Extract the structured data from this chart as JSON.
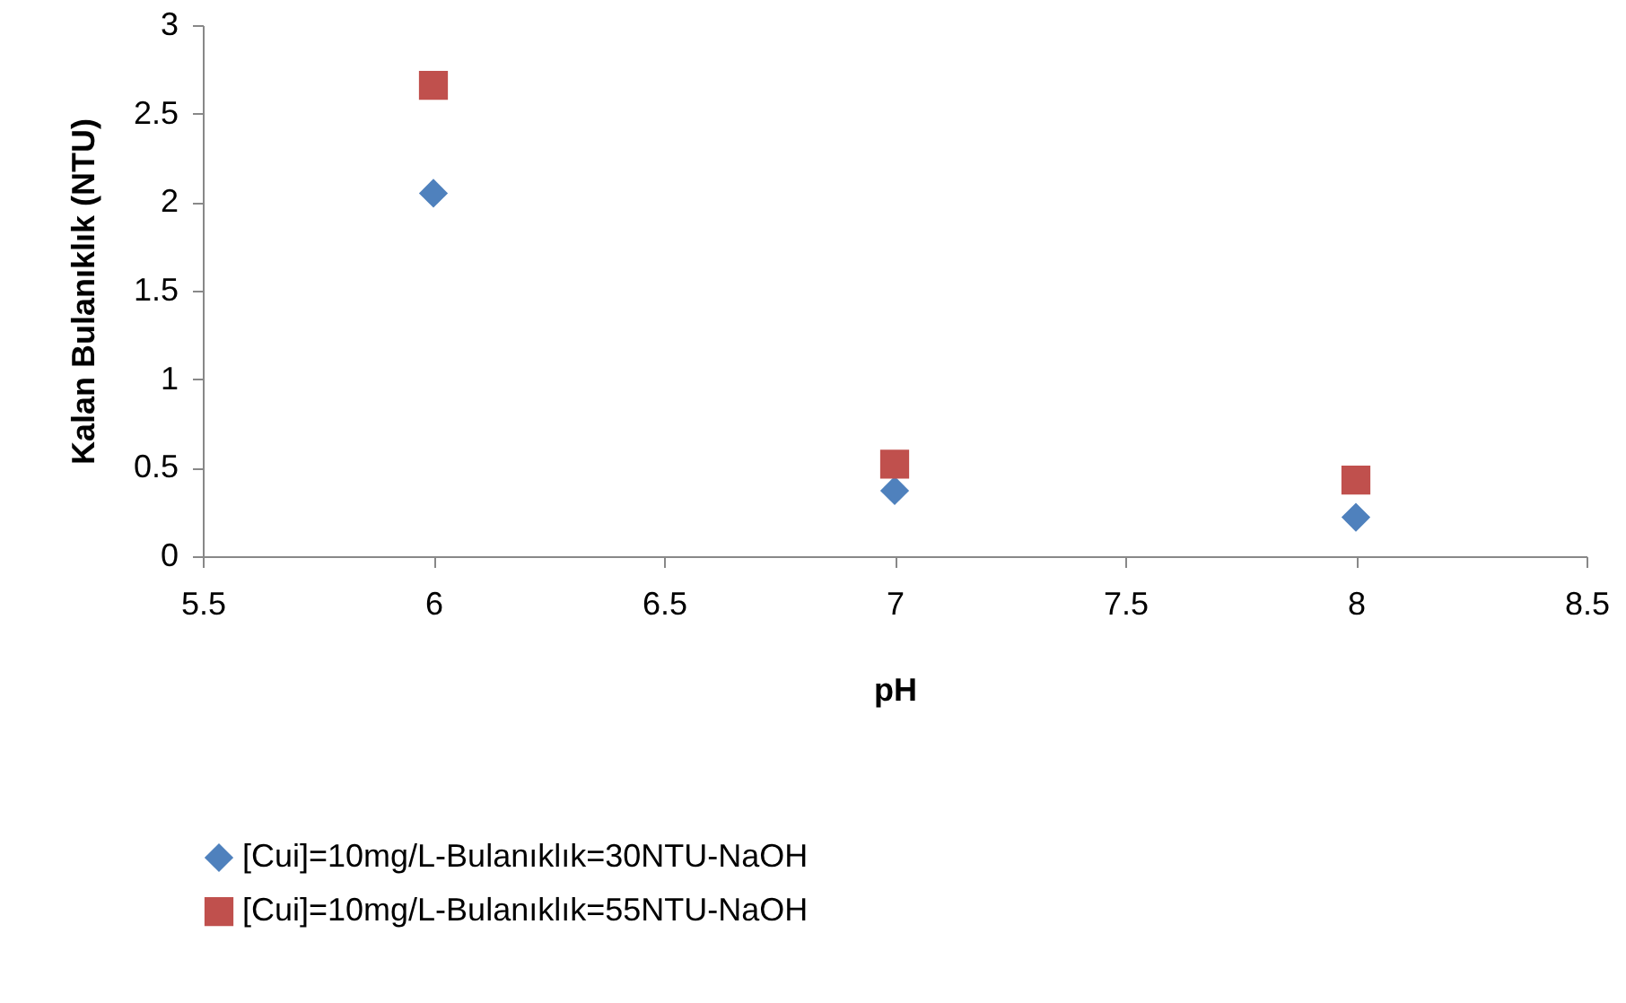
{
  "chart_data": {
    "type": "scatter",
    "xlabel": "pH",
    "ylabel": "Kalan Bulanıklık (NTU)",
    "x": [
      6,
      7,
      8
    ],
    "series": [
      {
        "name": "[Cui]=10mg/L-Bulanıklık=30NTU-NaOH",
        "color": "#4f81bd",
        "marker": "diamond",
        "values": [
          2.05,
          0.37,
          0.22
        ]
      },
      {
        "name": "[Cui]=10mg/L-Bulanıklık=55NTU-NaOH",
        "color": "#c0504d",
        "marker": "square",
        "values": [
          2.66,
          0.52,
          0.43
        ]
      }
    ],
    "xlim": [
      5.5,
      8.5
    ],
    "xticks": [
      5.5,
      6,
      6.5,
      7,
      7.5,
      8,
      8.5
    ],
    "ylim": [
      0,
      3
    ],
    "yticks": [
      0,
      0.5,
      1,
      1.5,
      2,
      2.5,
      3
    ],
    "grid": false,
    "legend": "bottom"
  }
}
